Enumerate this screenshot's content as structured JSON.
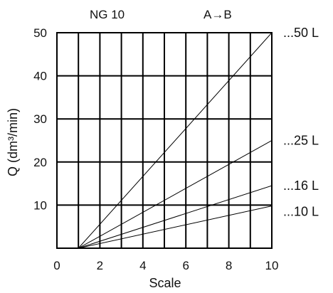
{
  "chart_data": {
    "type": "line",
    "title_left": "NG 10",
    "title_right": "A→B",
    "xlabel": "Scale",
    "ylabel": "Q (dm³/min)",
    "xlim": [
      0,
      10
    ],
    "ylim": [
      0,
      50
    ],
    "x_ticks": [
      0,
      2,
      4,
      6,
      8,
      10
    ],
    "y_ticks": [
      10,
      20,
      30,
      40,
      50
    ],
    "grid": true,
    "vertical_grid_step": 1,
    "series": [
      {
        "name": "...50 L",
        "x": [
          1,
          10
        ],
        "y": [
          0,
          50
        ]
      },
      {
        "name": "...25 L",
        "x": [
          1,
          10
        ],
        "y": [
          0,
          25
        ]
      },
      {
        "name": "...16 L",
        "x": [
          1,
          10
        ],
        "y": [
          0,
          14.5
        ]
      },
      {
        "name": "...10 L",
        "x": [
          1,
          10
        ],
        "y": [
          0,
          9.8
        ]
      }
    ]
  }
}
